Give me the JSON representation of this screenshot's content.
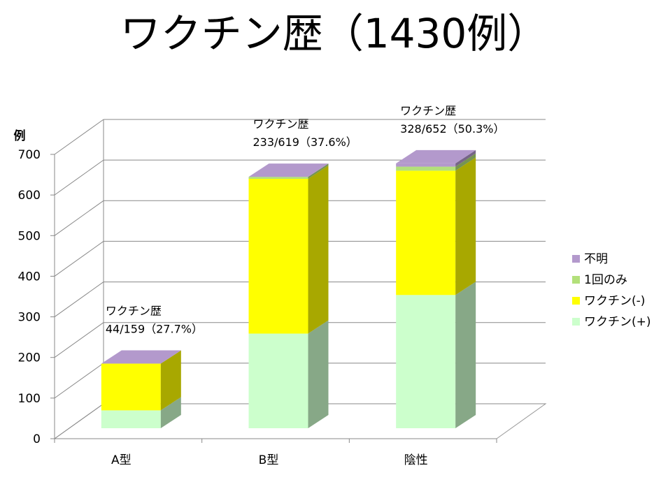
{
  "title": "ワクチン歴（1430例）",
  "chart_data": {
    "type": "bar",
    "stacked": true,
    "three_d": true,
    "title": "ワクチン歴（1430例）",
    "ylabel": "例",
    "xlabel": "",
    "ylim": [
      0,
      700
    ],
    "yticks": [
      0,
      100,
      200,
      300,
      400,
      500,
      600,
      700
    ],
    "grid": true,
    "legend_position": "right",
    "categories": [
      "A型",
      "B型",
      "陰性"
    ],
    "series": [
      {
        "name": "ワクチン(+)",
        "values": [
          44,
          233,
          328
        ],
        "color": "#ccffcc"
      },
      {
        "name": "ワクチン(-)",
        "values": [
          115,
          381,
          306
        ],
        "color": "#ffff00"
      },
      {
        "name": "1回のみ",
        "values": [
          0,
          5,
          10
        ],
        "color": "#b3e07a"
      },
      {
        "name": "不明",
        "values": [
          0,
          0,
          8
        ],
        "color": "#b399cc"
      }
    ],
    "annotations": [
      {
        "line1": "ワクチン歴",
        "line2": "44/159（27.7%）"
      },
      {
        "line1": "ワクチン歴",
        "line2": "233/619（37.6%）"
      },
      {
        "line1": "ワクチン歴",
        "line2": "328/652（50.3%）"
      }
    ]
  }
}
